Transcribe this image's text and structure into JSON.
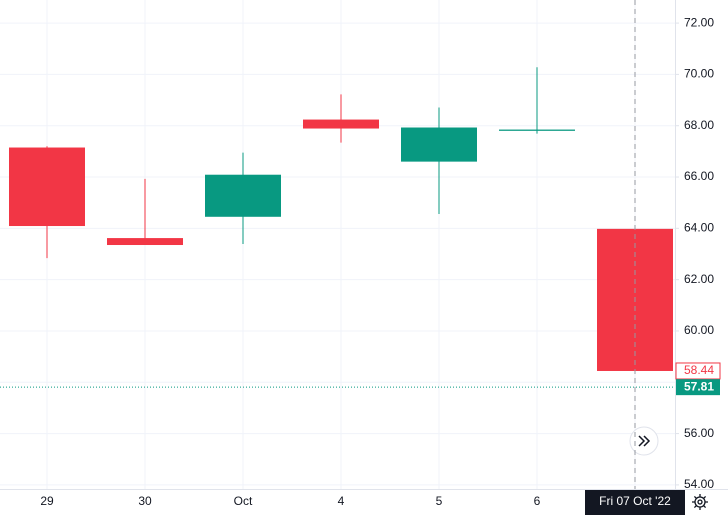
{
  "chart_data": {
    "type": "candlestick",
    "categories": [
      "29",
      "30",
      "Oct",
      "4",
      "5",
      "6",
      "Fri 07 Oct '22"
    ],
    "open": [
      67.15,
      63.62,
      64.45,
      68.24,
      66.6,
      67.8,
      63.98
    ],
    "high": [
      67.2,
      65.93,
      66.95,
      69.22,
      68.71,
      70.28,
      63.98
    ],
    "low": [
      62.84,
      63.35,
      63.39,
      67.34,
      64.56,
      67.69,
      58.44
    ],
    "close": [
      64.09,
      63.35,
      66.09,
      67.89,
      67.93,
      67.85,
      58.44
    ],
    "up_color": "#089981",
    "down_color": "#f23645",
    "ylim": [
      53.84,
      72.9
    ],
    "yticks": [
      {
        "value": 54,
        "label": "54.00"
      },
      {
        "value": 56,
        "label": "56.00"
      },
      {
        "value": 58,
        "label": "58.00"
      },
      {
        "value": 60,
        "label": "60.00"
      },
      {
        "value": 62,
        "label": "62.00"
      },
      {
        "value": 64,
        "label": "64.00"
      },
      {
        "value": 66,
        "label": "66.00"
      },
      {
        "value": 68,
        "label": "68.00"
      },
      {
        "value": 70,
        "label": "70.00"
      },
      {
        "value": 72,
        "label": "72.00"
      }
    ],
    "grid": true,
    "price_labels": [
      {
        "value": 58.44,
        "label": "58.44",
        "color": "#f23645"
      },
      {
        "value": 57.81,
        "label": "57.81",
        "color": "#089981"
      }
    ]
  }
}
